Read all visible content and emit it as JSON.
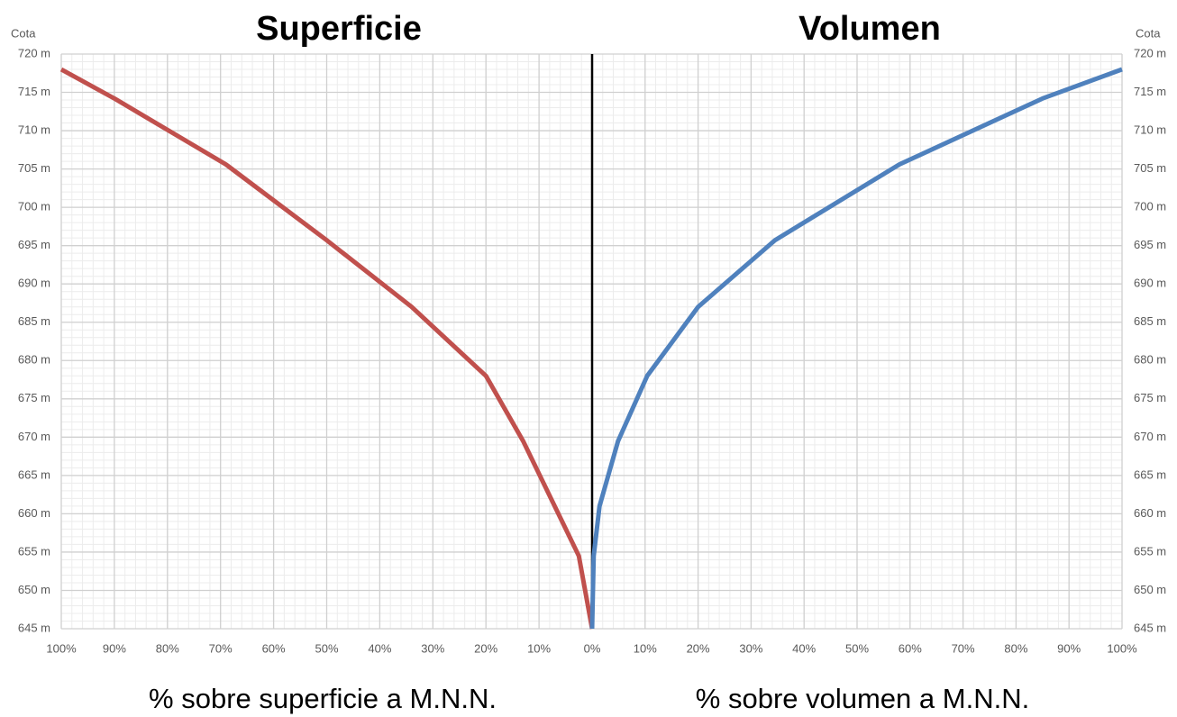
{
  "chart_data": [
    {
      "type": "line",
      "title": "Superficie",
      "x_label": "% sobre superficie a M.N.N.",
      "y_label": "Cota",
      "y_axis_side": "left",
      "xlim": [
        100,
        0
      ],
      "xticks": [
        {
          "value": 100,
          "label": "100%"
        },
        {
          "value": 90,
          "label": "90%"
        },
        {
          "value": 80,
          "label": "80%"
        },
        {
          "value": 70,
          "label": "70%"
        },
        {
          "value": 60,
          "label": "60%"
        },
        {
          "value": 50,
          "label": "50%"
        },
        {
          "value": 40,
          "label": "40%"
        },
        {
          "value": 30,
          "label": "30%"
        },
        {
          "value": 20,
          "label": "20%"
        },
        {
          "value": 10,
          "label": "10%"
        }
      ],
      "ylim": [
        645,
        720
      ],
      "yticks": [
        {
          "value": 645,
          "label": "645 m"
        },
        {
          "value": 650,
          "label": "650 m"
        },
        {
          "value": 655,
          "label": "655 m"
        },
        {
          "value": 660,
          "label": "660 m"
        },
        {
          "value": 665,
          "label": "665 m"
        },
        {
          "value": 670,
          "label": "670 m"
        },
        {
          "value": 675,
          "label": "675 m"
        },
        {
          "value": 680,
          "label": "680 m"
        },
        {
          "value": 685,
          "label": "685 m"
        },
        {
          "value": 690,
          "label": "690 m"
        },
        {
          "value": 695,
          "label": "695 m"
        },
        {
          "value": 700,
          "label": "700 m"
        },
        {
          "value": 705,
          "label": "705 m"
        },
        {
          "value": 710,
          "label": "710 m"
        },
        {
          "value": 715,
          "label": "715 m"
        },
        {
          "value": 720,
          "label": "720 m"
        }
      ],
      "grid": true,
      "minor_grid": {
        "x": 2,
        "y": 1
      },
      "series": [
        {
          "color": "#c0504d",
          "x": [
            0,
            2.5,
            13,
            20,
            34,
            50,
            69,
            90,
            100
          ],
          "values": [
            645,
            654.5,
            669.5,
            678,
            687,
            695.7,
            705.6,
            714.2,
            718
          ]
        }
      ]
    },
    {
      "type": "line",
      "title": "Volumen",
      "x_label": "% sobre volumen a M.N.N.",
      "y_label": "Cota",
      "y_axis_side": "right",
      "xlim": [
        0,
        100
      ],
      "xticks": [
        {
          "value": 0,
          "label": "0%"
        },
        {
          "value": 10,
          "label": "10%"
        },
        {
          "value": 20,
          "label": "20%"
        },
        {
          "value": 30,
          "label": "30%"
        },
        {
          "value": 40,
          "label": "40%"
        },
        {
          "value": 50,
          "label": "50%"
        },
        {
          "value": 60,
          "label": "60%"
        },
        {
          "value": 70,
          "label": "70%"
        },
        {
          "value": 80,
          "label": "80%"
        },
        {
          "value": 90,
          "label": "90%"
        },
        {
          "value": 100,
          "label": "100%"
        }
      ],
      "ylim": [
        645,
        720
      ],
      "yticks": [
        {
          "value": 645,
          "label": "645 m"
        },
        {
          "value": 650,
          "label": "650 m"
        },
        {
          "value": 655,
          "label": "655 m"
        },
        {
          "value": 660,
          "label": "660 m"
        },
        {
          "value": 665,
          "label": "665 m"
        },
        {
          "value": 670,
          "label": "670 m"
        },
        {
          "value": 675,
          "label": "675 m"
        },
        {
          "value": 680,
          "label": "680 m"
        },
        {
          "value": 685,
          "label": "685 m"
        },
        {
          "value": 690,
          "label": "690 m"
        },
        {
          "value": 695,
          "label": "695 m"
        },
        {
          "value": 700,
          "label": "700 m"
        },
        {
          "value": 705,
          "label": "705 m"
        },
        {
          "value": 710,
          "label": "710 m"
        },
        {
          "value": 715,
          "label": "715 m"
        },
        {
          "value": 720,
          "label": "720 m"
        }
      ],
      "grid": true,
      "minor_grid": {
        "x": 2,
        "y": 1
      },
      "series": [
        {
          "color": "#4f81bd",
          "x": [
            0,
            0.3,
            1.4,
            4.9,
            10.4,
            20,
            34.5,
            58,
            85,
            100
          ],
          "values": [
            645,
            654.5,
            661,
            669.5,
            678,
            687,
            695.7,
            705.6,
            714.2,
            718
          ]
        }
      ]
    }
  ]
}
